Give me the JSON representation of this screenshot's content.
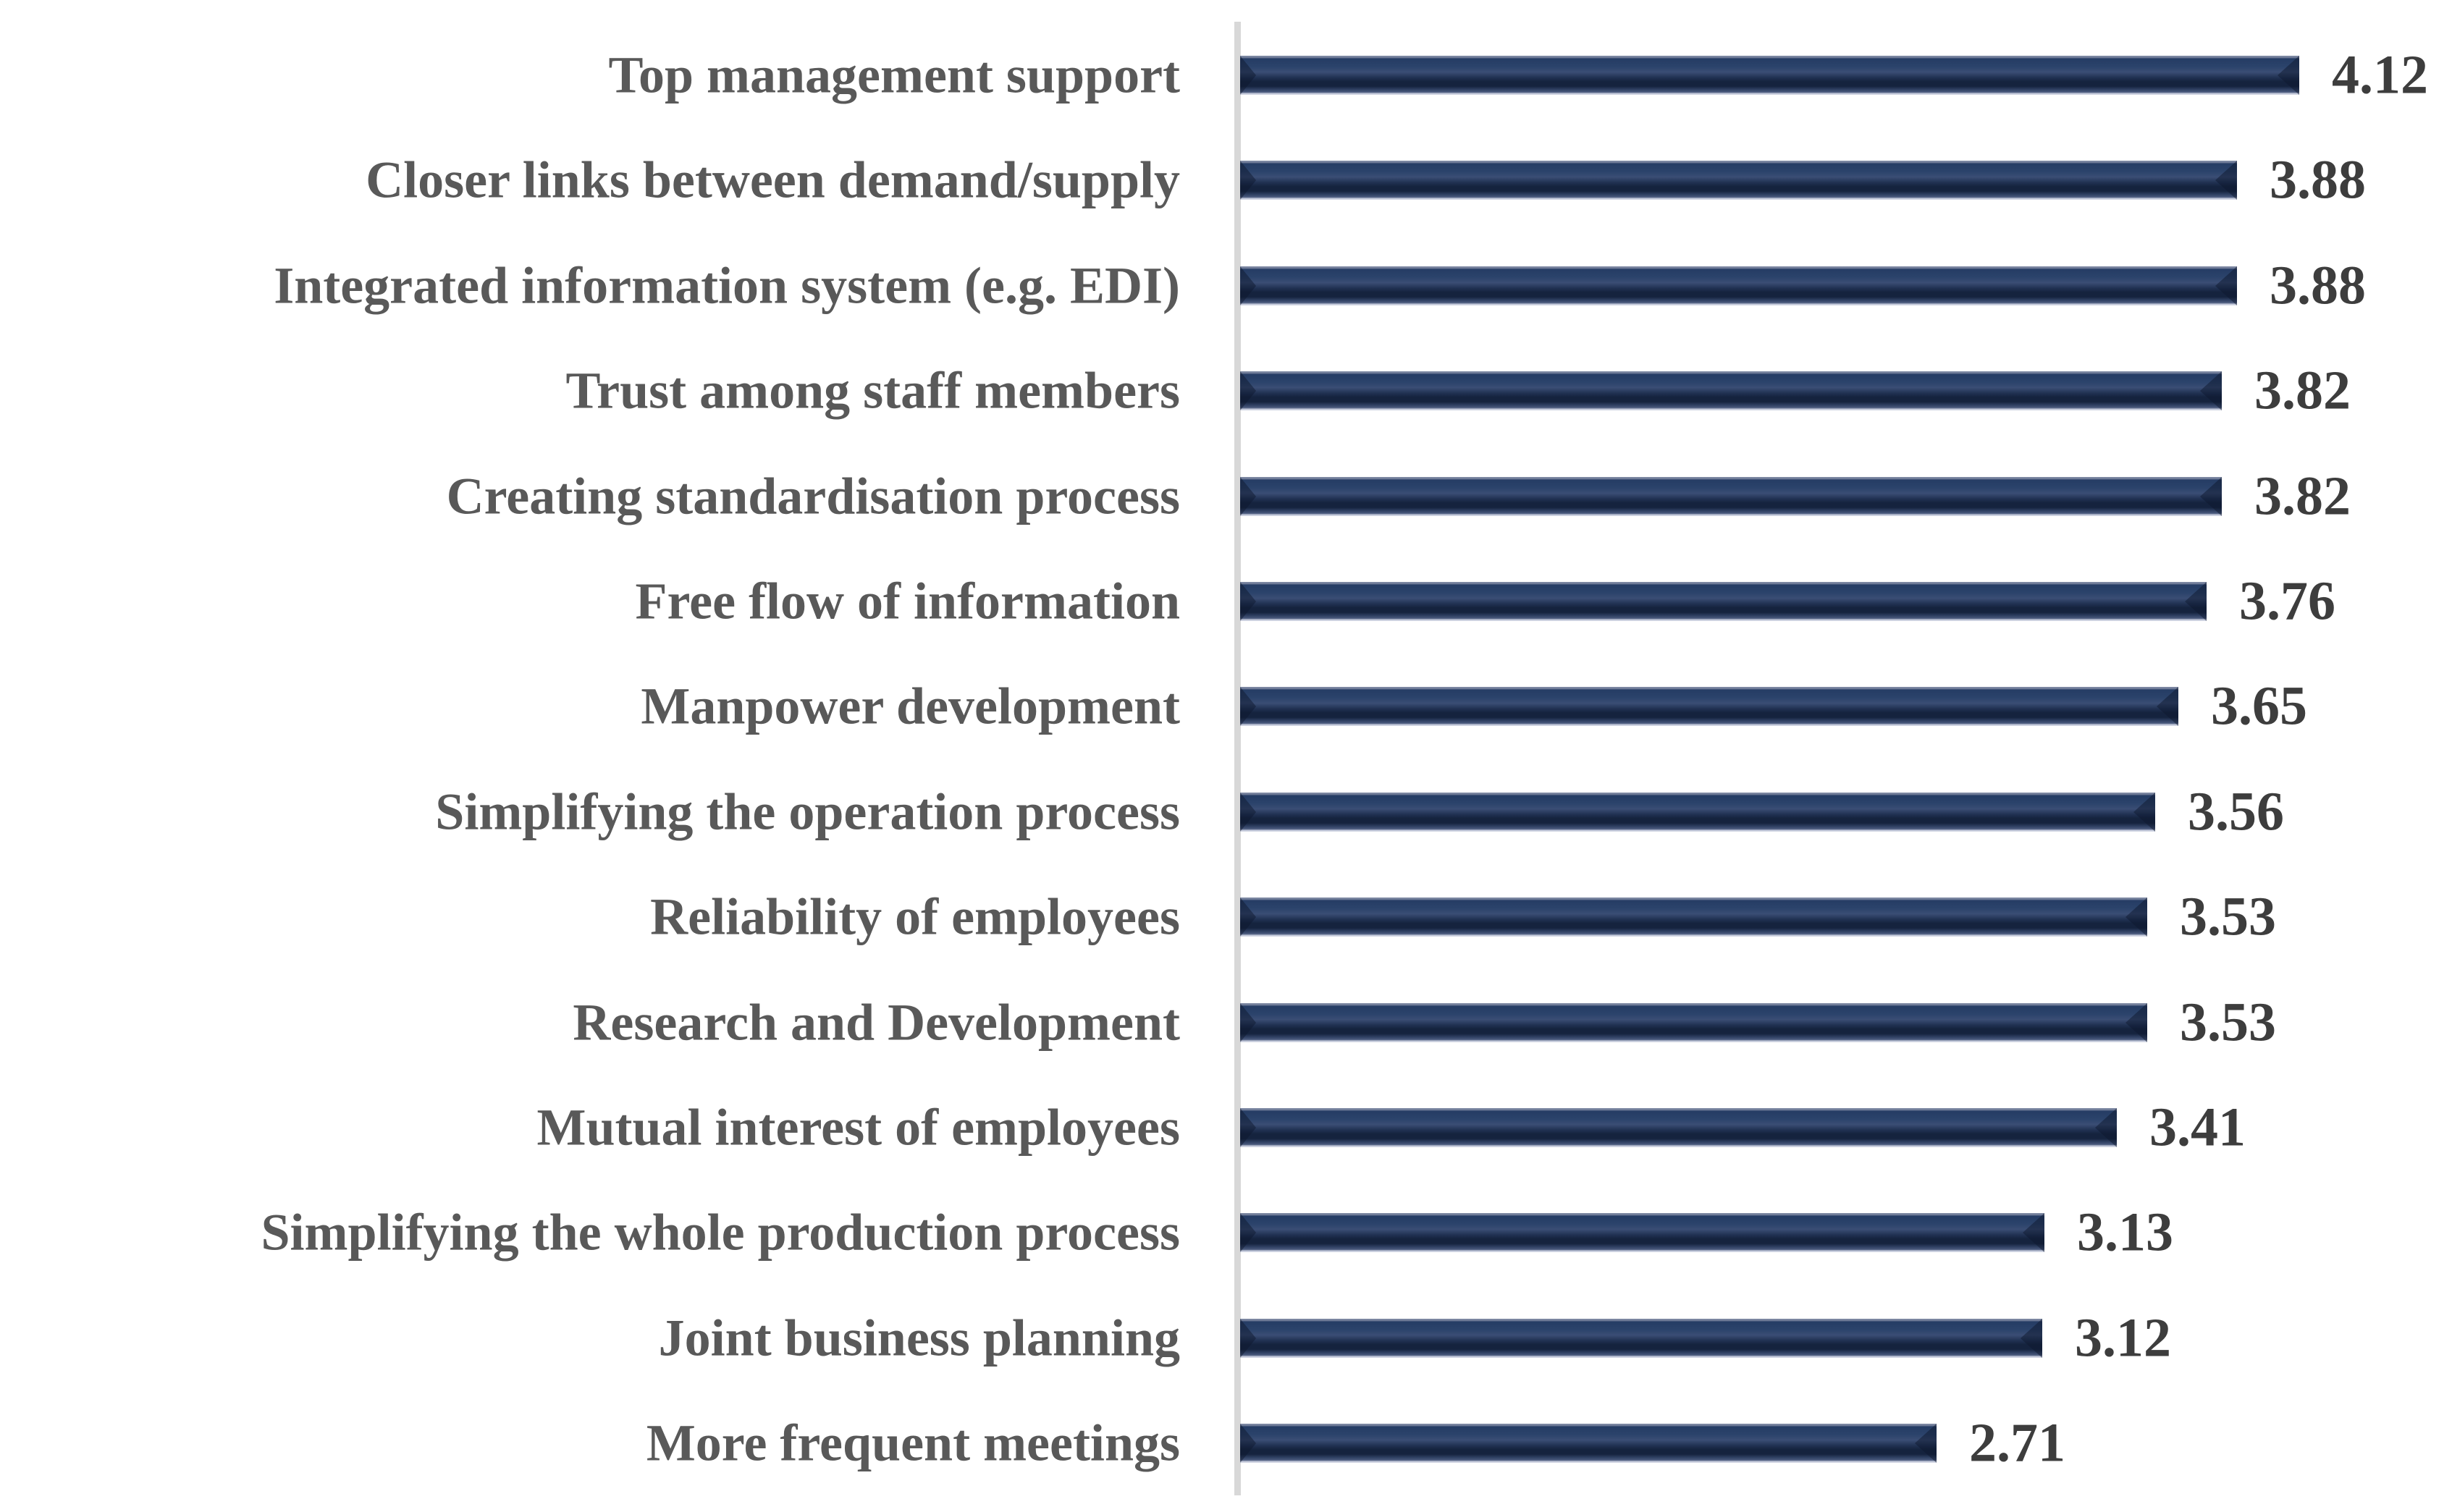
{
  "chart_data": {
    "type": "bar",
    "orientation": "horizontal",
    "title": "",
    "xlabel": "",
    "ylabel": "",
    "grid": false,
    "legend": null,
    "data_labels": true,
    "xlim": [
      0,
      4.5
    ],
    "categories": [
      "Top management support",
      "Closer links between demand/supply",
      "Integrated information system (e.g. EDI)",
      "Trust among staff members",
      "Creating standardisation process",
      "Free flow of information",
      "Manpower development",
      "Simplifying the operation process",
      "Reliability of employees",
      "Research and Development",
      "Mutual interest of employees",
      "Simplifying the whole production process",
      "Joint business planning",
      "More frequent meetings"
    ],
    "values": [
      4.12,
      3.88,
      3.88,
      3.82,
      3.82,
      3.76,
      3.65,
      3.56,
      3.53,
      3.53,
      3.41,
      3.13,
      3.12,
      2.71
    ],
    "value_labels": [
      "4.12",
      "3.88",
      "3.88",
      "3.82",
      "3.82",
      "3.76",
      "3.65",
      "3.56",
      "3.53",
      "3.53",
      "3.41",
      "3.13",
      "3.12",
      "2.71"
    ],
    "colors": {
      "bar_base": "#1f3864",
      "bar_dark_core": "#15233e",
      "bar_light_edge": "#d3d7e4",
      "category_label": "#595959",
      "value_label": "#3d3d3d",
      "axis_line": "#d8d8d8",
      "background": "#ffffff"
    }
  }
}
